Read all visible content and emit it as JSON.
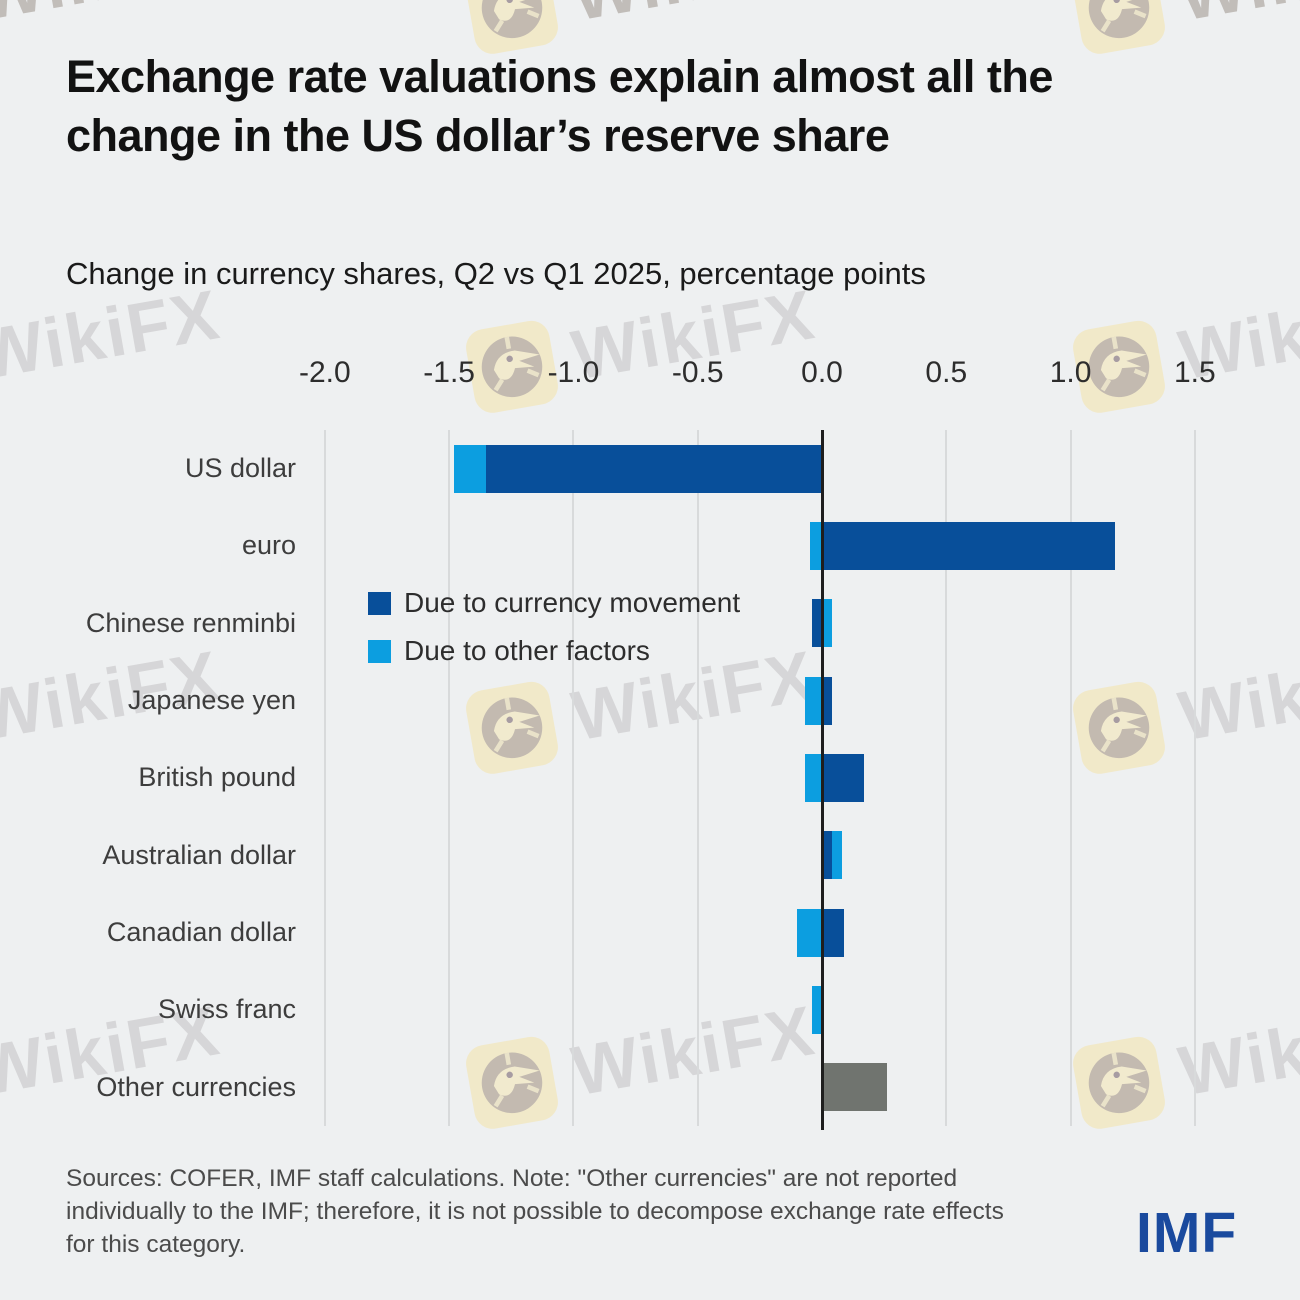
{
  "page": {
    "background": "#eef0f1"
  },
  "header": {
    "title": "Exchange rate valuations explain almost all the change in the US dollar’s reserve share",
    "subtitle": "Change in currency shares, Q2 vs Q1 2025, percentage points"
  },
  "chart_data": {
    "type": "bar",
    "orientation": "horizontal",
    "stacked": true,
    "grid": "vertical",
    "xlim": [
      -2.0,
      1.5
    ],
    "x_tick_labels": [
      "-2.0",
      "-1.5",
      "-1.0",
      "-0.5",
      "0.0",
      "0.5",
      "1.0",
      "1.5"
    ],
    "categories": [
      "US dollar",
      "euro",
      "Chinese renminbi",
      "Japanese yen",
      "British pound",
      "Australian dollar",
      "Canadian dollar",
      "Swiss franc",
      "Other currencies"
    ],
    "series": [
      {
        "name": "Due to currency movement",
        "color": "#084f9a",
        "values": [
          -1.35,
          1.18,
          -0.04,
          0.04,
          0.17,
          0.04,
          0.09,
          0,
          null
        ]
      },
      {
        "name": "Due to other factors",
        "color": "#0c9ee0",
        "values": [
          -0.13,
          -0.05,
          0.04,
          -0.07,
          -0.07,
          0.04,
          -0.1,
          -0.04,
          null
        ]
      }
    ],
    "undecomposed": {
      "category": "Other currencies",
      "value": 0.26,
      "color": "#70746f"
    },
    "legend_position": "inside-left",
    "zero_line_color": "#1e1e1e",
    "gridline_color": "#d8dadb"
  },
  "footer": {
    "note": "Sources: COFER, IMF staff calculations. Note: \"Other currencies\" are not reported individually to the IMF; therefore, it is not possible to decompose exchange rate effects for this category.",
    "logo": "IMF",
    "logo_color": "#1a4a9e"
  },
  "watermark": {
    "label": "WikiFX",
    "icon": "eagle-logo-icon"
  }
}
